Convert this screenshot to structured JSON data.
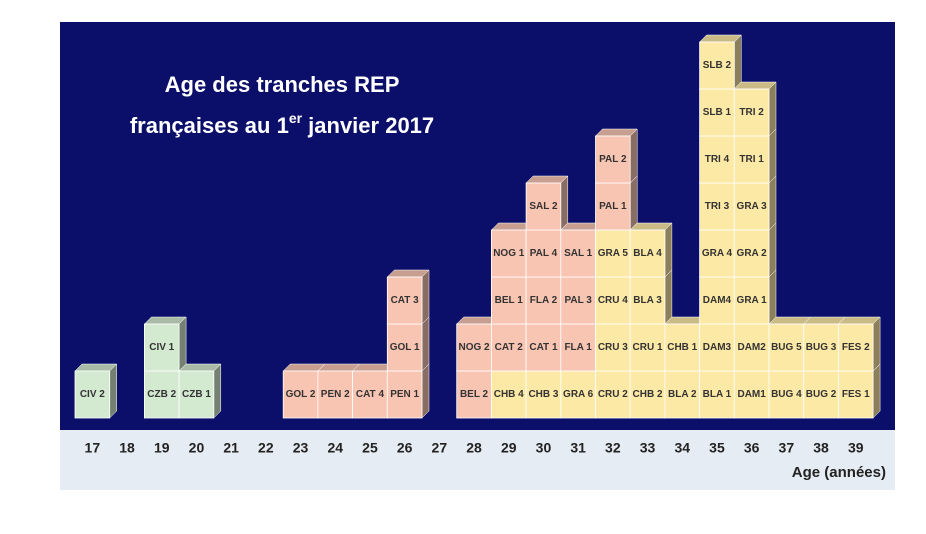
{
  "title": {
    "line1": "Age des tranches REP",
    "line2_start": "françaises au 1",
    "line2_sup": "er",
    "line2_end": " janvier 2017"
  },
  "x_axis_label": "Age (années)",
  "columns": [
    {
      "age": "17",
      "blocks": [
        {
          "label": "CIV 2",
          "color": "#d3ead0"
        }
      ]
    },
    {
      "age": "18",
      "blocks": []
    },
    {
      "age": "19",
      "blocks": [
        {
          "label": "CZB 2",
          "color": "#d3ead0"
        },
        {
          "label": "CIV 1",
          "color": "#d3ead0"
        }
      ]
    },
    {
      "age": "20",
      "blocks": [
        {
          "label": "CZB 1",
          "color": "#d3ead0"
        }
      ]
    },
    {
      "age": "21",
      "blocks": []
    },
    {
      "age": "22",
      "blocks": []
    },
    {
      "age": "23",
      "blocks": [
        {
          "label": "GOL 2",
          "color": "#f9c5b3"
        }
      ]
    },
    {
      "age": "24",
      "blocks": [
        {
          "label": "PEN 2",
          "color": "#f9c5b3"
        }
      ]
    },
    {
      "age": "25",
      "blocks": [
        {
          "label": "CAT 4",
          "color": "#f9c5b3"
        }
      ]
    },
    {
      "age": "26",
      "blocks": [
        {
          "label": "PEN 1",
          "color": "#f9c5b3"
        },
        {
          "label": "GOL 1",
          "color": "#f9c5b3"
        },
        {
          "label": "CAT 3",
          "color": "#f9c5b3"
        }
      ]
    },
    {
      "age": "27",
      "blocks": []
    },
    {
      "age": "28",
      "blocks": [
        {
          "label": "BEL 2",
          "color": "#f9c5b3"
        },
        {
          "label": "NOG 2",
          "color": "#f9c5b3"
        }
      ]
    },
    {
      "age": "29",
      "blocks": [
        {
          "label": "CHB 4",
          "color": "#fde9a6"
        },
        {
          "label": "CAT 2",
          "color": "#f9c5b3"
        },
        {
          "label": "BEL 1",
          "color": "#f9c5b3"
        },
        {
          "label": "NOG 1",
          "color": "#f9c5b3"
        }
      ]
    },
    {
      "age": "30",
      "blocks": [
        {
          "label": "CHB 3",
          "color": "#fde9a6"
        },
        {
          "label": "CAT 1",
          "color": "#f9c5b3"
        },
        {
          "label": "FLA 2",
          "color": "#f9c5b3"
        },
        {
          "label": "PAL 4",
          "color": "#f9c5b3"
        },
        {
          "label": "SAL 2",
          "color": "#f9c5b3"
        }
      ]
    },
    {
      "age": "31",
      "blocks": [
        {
          "label": "GRA 6",
          "color": "#fde9a6"
        },
        {
          "label": "FLA 1",
          "color": "#f9c5b3"
        },
        {
          "label": "PAL 3",
          "color": "#f9c5b3"
        },
        {
          "label": "SAL 1",
          "color": "#f9c5b3"
        }
      ]
    },
    {
      "age": "32",
      "blocks": [
        {
          "label": "CRU 2",
          "color": "#fde9a6"
        },
        {
          "label": "CRU 3",
          "color": "#fde9a6"
        },
        {
          "label": "CRU 4",
          "color": "#fde9a6"
        },
        {
          "label": "GRA 5",
          "color": "#fde9a6"
        },
        {
          "label": "PAL 1",
          "color": "#f9c5b3"
        },
        {
          "label": "PAL 2",
          "color": "#f9c5b3"
        }
      ]
    },
    {
      "age": "33",
      "blocks": [
        {
          "label": "CHB 2",
          "color": "#fde9a6"
        },
        {
          "label": "CRU 1",
          "color": "#fde9a6"
        },
        {
          "label": "BLA 3",
          "color": "#fde9a6"
        },
        {
          "label": "BLA 4",
          "color": "#fde9a6"
        }
      ]
    },
    {
      "age": "34",
      "blocks": [
        {
          "label": "BLA 2",
          "color": "#fde9a6"
        },
        {
          "label": "CHB 1",
          "color": "#fde9a6"
        }
      ]
    },
    {
      "age": "35",
      "blocks": [
        {
          "label": "BLA 1",
          "color": "#fde9a6"
        },
        {
          "label": "DAM3",
          "color": "#fde9a6"
        },
        {
          "label": "DAM4",
          "color": "#fde9a6"
        },
        {
          "label": "GRA 4",
          "color": "#fde9a6"
        },
        {
          "label": "TRI 3",
          "color": "#fde9a6"
        },
        {
          "label": "TRI 4",
          "color": "#fde9a6"
        },
        {
          "label": "SLB 1",
          "color": "#fde9a6"
        },
        {
          "label": "SLB 2",
          "color": "#fde9a6"
        }
      ]
    },
    {
      "age": "36",
      "blocks": [
        {
          "label": "DAM1",
          "color": "#fde9a6"
        },
        {
          "label": "DAM2",
          "color": "#fde9a6"
        },
        {
          "label": "GRA 1",
          "color": "#fde9a6"
        },
        {
          "label": "GRA 2",
          "color": "#fde9a6"
        },
        {
          "label": "GRA 3",
          "color": "#fde9a6"
        },
        {
          "label": "TRI 1",
          "color": "#fde9a6"
        },
        {
          "label": "TRI 2",
          "color": "#fde9a6"
        }
      ]
    },
    {
      "age": "37",
      "blocks": [
        {
          "label": "BUG 4",
          "color": "#fde9a6"
        },
        {
          "label": "BUG 5",
          "color": "#fde9a6"
        }
      ]
    },
    {
      "age": "38",
      "blocks": [
        {
          "label": "BUG 2",
          "color": "#fde9a6"
        },
        {
          "label": "BUG 3",
          "color": "#fde9a6"
        }
      ]
    },
    {
      "age": "39",
      "blocks": [
        {
          "label": "FES 1",
          "color": "#fde9a6"
        },
        {
          "label": "FES 2",
          "color": "#fde9a6"
        }
      ]
    }
  ]
}
